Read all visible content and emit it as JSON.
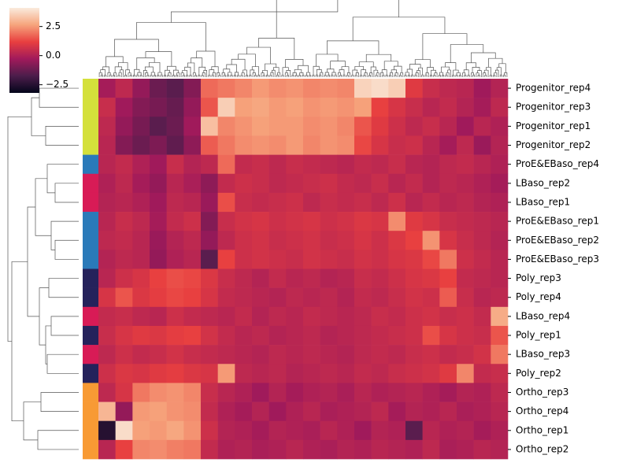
{
  "chart_data": {
    "type": "heatmap",
    "y_categories": [
      "Progenitor_rep4",
      "Progenitor_rep3",
      "Progenitor_rep1",
      "Progenitor_rep2",
      "ProE&EBaso_rep4",
      "LBaso_rep2",
      "LBaso_rep1",
      "ProE&EBaso_rep1",
      "ProE&EBaso_rep2",
      "ProE&EBaso_rep3",
      "Poly_rep3",
      "Poly_rep4",
      "LBaso_rep4",
      "Poly_rep1",
      "LBaso_rep3",
      "Poly_rep2",
      "Ortho_rep3",
      "Ortho_rep4",
      "Ortho_rep1",
      "Ortho_rep2"
    ],
    "row_colors": [
      "#d4e03b",
      "#d4e03b",
      "#d4e03b",
      "#d4e03b",
      "#2a7ab9",
      "#d81b56",
      "#d81b56",
      "#2a7ab9",
      "#2a7ab9",
      "#2a7ab9",
      "#25225b",
      "#25225b",
      "#d81b56",
      "#25225b",
      "#d81b56",
      "#25225b",
      "#f89a34",
      "#f89a34",
      "#f89a34",
      "#f89a34"
    ],
    "values": [
      [
        -0.2,
        0.3,
        -0.5,
        -1.2,
        -1.5,
        -0.8,
        1.8,
        2.0,
        2.2,
        2.5,
        2.3,
        2.4,
        2.2,
        2.3,
        2.2,
        3.6,
        3.8,
        3.5,
        1.0,
        0.5,
        0.3,
        0.2,
        -0.3,
        0.1
      ],
      [
        0.5,
        -0.3,
        -0.8,
        -1.0,
        -1.3,
        -0.5,
        1.5,
        3.5,
        2.6,
        2.7,
        2.5,
        2.6,
        2.4,
        2.5,
        2.4,
        2.6,
        1.2,
        0.8,
        0.5,
        0.2,
        0.4,
        0.1,
        -0.2,
        0.3
      ],
      [
        0.3,
        -0.5,
        -1.0,
        -1.5,
        -1.2,
        -0.3,
        3.2,
        2.2,
        2.4,
        2.6,
        2.5,
        2.5,
        2.3,
        2.4,
        2.2,
        1.5,
        1.0,
        0.6,
        0.3,
        0.5,
        0.2,
        -0.3,
        0.2,
        0.0
      ],
      [
        0.2,
        -0.8,
        -1.2,
        -0.9,
        -1.4,
        -0.6,
        1.6,
        2.0,
        2.3,
        2.4,
        2.3,
        2.5,
        2.2,
        2.4,
        2.3,
        1.3,
        0.8,
        0.5,
        0.6,
        0.2,
        -0.2,
        0.3,
        -0.4,
        0.1
      ],
      [
        0.2,
        0.4,
        0.0,
        -0.3,
        0.5,
        0.1,
        0.3,
        1.8,
        0.4,
        0.5,
        0.3,
        0.5,
        0.4,
        0.3,
        0.2,
        0.4,
        0.3,
        0.5,
        0.2,
        0.1,
        0.3,
        0.4,
        0.2,
        0.0
      ],
      [
        0.0,
        0.3,
        -0.2,
        -0.5,
        0.2,
        -0.1,
        -0.6,
        0.4,
        0.6,
        0.5,
        0.3,
        0.4,
        0.5,
        0.6,
        0.4,
        0.3,
        0.5,
        0.2,
        0.4,
        0.1,
        0.3,
        0.2,
        0.0,
        -0.2
      ],
      [
        0.1,
        0.2,
        0.0,
        -0.3,
        0.3,
        0.2,
        -0.4,
        1.4,
        0.5,
        0.4,
        0.5,
        0.6,
        0.3,
        0.5,
        0.4,
        0.5,
        0.3,
        0.6,
        0.2,
        0.4,
        0.2,
        0.3,
        0.1,
        0.0
      ],
      [
        0.2,
        0.5,
        0.3,
        -0.2,
        0.4,
        0.6,
        -0.8,
        0.5,
        0.7,
        0.8,
        0.6,
        0.7,
        0.8,
        0.6,
        0.7,
        0.9,
        0.8,
        2.3,
        1.0,
        0.8,
        0.5,
        0.4,
        0.3,
        0.2
      ],
      [
        0.3,
        0.4,
        0.2,
        -0.4,
        0.1,
        0.3,
        -0.5,
        0.3,
        0.6,
        0.7,
        0.5,
        0.6,
        0.7,
        0.5,
        0.6,
        0.8,
        0.6,
        0.9,
        1.2,
        2.4,
        0.8,
        0.5,
        0.3,
        0.1
      ],
      [
        0.1,
        0.3,
        0.2,
        -0.5,
        0.0,
        0.2,
        -1.5,
        1.2,
        0.6,
        0.7,
        0.6,
        0.5,
        0.7,
        0.6,
        0.5,
        0.7,
        0.6,
        0.8,
        0.9,
        1.3,
        2.0,
        0.6,
        0.4,
        0.2
      ],
      [
        0.2,
        0.6,
        0.8,
        1.2,
        1.4,
        1.3,
        0.9,
        0.5,
        0.3,
        0.1,
        0.4,
        0.2,
        0.3,
        0.1,
        0.2,
        0.5,
        0.4,
        0.6,
        0.8,
        0.9,
        1.2,
        0.4,
        0.3,
        0.2
      ],
      [
        0.8,
        1.5,
        0.9,
        1.1,
        1.3,
        1.2,
        0.8,
        0.4,
        0.3,
        0.2,
        0.1,
        0.3,
        0.2,
        0.3,
        0.1,
        0.4,
        0.3,
        0.5,
        0.7,
        0.6,
        1.6,
        0.5,
        0.2,
        0.3
      ],
      [
        0.4,
        0.5,
        0.3,
        0.2,
        0.6,
        0.4,
        0.3,
        0.2,
        0.4,
        0.1,
        0.3,
        0.2,
        0.4,
        0.3,
        0.2,
        0.3,
        0.5,
        0.4,
        0.6,
        0.7,
        0.5,
        0.6,
        0.4,
        2.8
      ],
      [
        0.5,
        0.8,
        1.0,
        0.9,
        1.1,
        1.2,
        0.7,
        0.4,
        0.2,
        0.3,
        0.1,
        0.2,
        0.3,
        0.1,
        0.2,
        0.3,
        0.4,
        0.5,
        0.6,
        1.4,
        0.8,
        0.6,
        0.5,
        1.5
      ],
      [
        0.3,
        0.6,
        0.4,
        0.5,
        0.7,
        0.5,
        0.4,
        0.3,
        0.2,
        0.1,
        0.3,
        0.2,
        0.3,
        0.2,
        0.1,
        0.3,
        0.4,
        0.3,
        0.5,
        0.6,
        0.4,
        0.5,
        0.7,
        2.0
      ],
      [
        0.6,
        0.9,
        0.8,
        1.0,
        1.1,
        0.9,
        0.8,
        2.5,
        0.3,
        0.2,
        0.3,
        0.1,
        0.2,
        0.3,
        0.2,
        0.4,
        0.3,
        0.5,
        0.6,
        0.7,
        1.0,
        2.2,
        0.4,
        0.5
      ],
      [
        0.3,
        0.8,
        2.0,
        2.3,
        2.4,
        2.2,
        0.5,
        0.2,
        0.0,
        -0.3,
        0.1,
        -0.2,
        0.0,
        0.1,
        -0.1,
        0.2,
        0.0,
        0.1,
        0.2,
        0.0,
        -0.2,
        0.1,
        0.0,
        0.3
      ],
      [
        3.0,
        -0.5,
        2.5,
        2.6,
        2.4,
        2.3,
        0.4,
        0.0,
        -0.2,
        0.1,
        -0.3,
        0.0,
        0.2,
        -0.1,
        0.0,
        0.1,
        0.3,
        -0.2,
        0.1,
        0.0,
        0.2,
        -0.1,
        0.0,
        0.2
      ],
      [
        -2.5,
        3.8,
        2.6,
        2.5,
        2.7,
        2.4,
        0.6,
        0.1,
        0.0,
        -0.2,
        0.1,
        0.0,
        -0.1,
        0.2,
        0.0,
        -0.3,
        0.1,
        0.0,
        -1.5,
        0.2,
        0.0,
        0.1,
        -0.2,
        0.0
      ],
      [
        0.2,
        1.2,
        2.2,
        2.3,
        2.1,
        2.0,
        0.4,
        0.0,
        0.1,
        -0.1,
        0.0,
        0.2,
        0.0,
        -0.1,
        0.1,
        0.0,
        0.2,
        0.1,
        0.0,
        0.3,
        -0.1,
        0.0,
        0.2,
        0.1
      ]
    ],
    "colormap": [
      "#03051a",
      "#4c1d4b",
      "#a11a5b",
      "#e83f3f",
      "#f6a47c",
      "#faebdd"
    ],
    "clim": [
      -3.2,
      4.1
    ],
    "cticks": [
      {
        "value": -2.5,
        "label": "−2.5"
      },
      {
        "value": 0,
        "label": "0.0"
      },
      2.5
    ]
  }
}
